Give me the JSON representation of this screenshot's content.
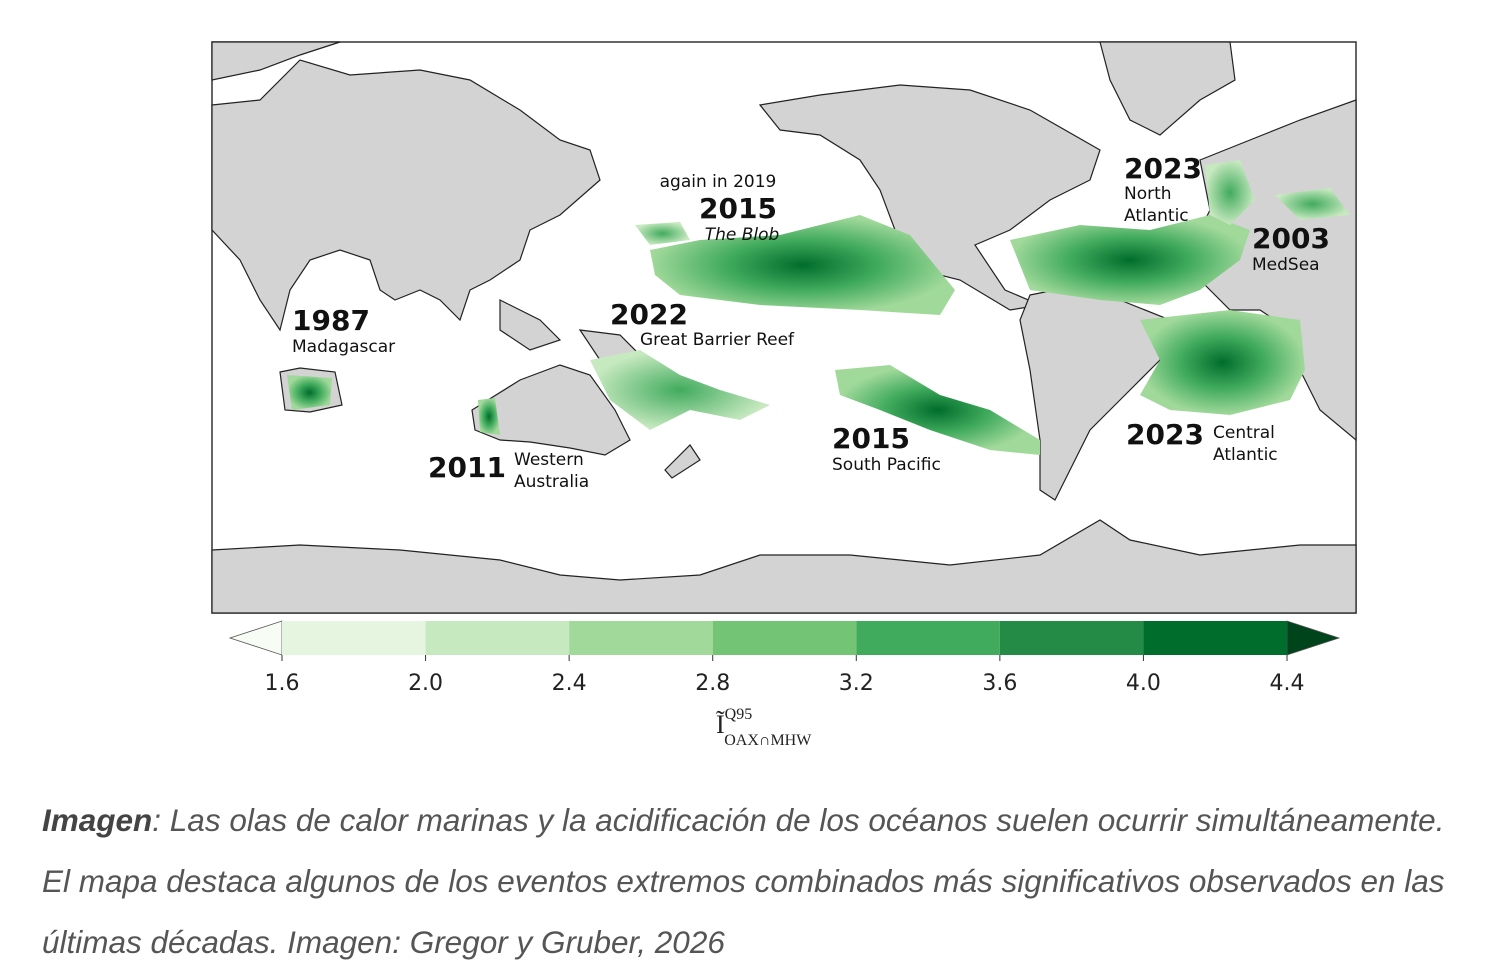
{
  "map": {
    "annotations": [
      {
        "note": "again in 2019",
        "year": "2015",
        "lines": [
          "The Blob"
        ]
      },
      {
        "year": "2023",
        "lines": [
          "North",
          "Atlantic"
        ]
      },
      {
        "year": "2003",
        "lines": [
          "MedSea"
        ]
      },
      {
        "year": "1987",
        "lines": [
          "Madagascar"
        ]
      },
      {
        "year": "2022",
        "lines": [
          "Great Barrier Reef"
        ]
      },
      {
        "year": "2011",
        "lines": [
          "Western",
          "Australia"
        ]
      },
      {
        "year": "2015",
        "lines": [
          "South Pacific"
        ]
      },
      {
        "year": "2023",
        "lines": [
          "Central",
          "Atlantic"
        ]
      }
    ],
    "colorbar": {
      "lim": [
        1.6,
        4.4
      ],
      "ticks": [
        1.6,
        {
          "value": 2,
          "label": "2.0"
        },
        2.4,
        2.8,
        3.2,
        3.6,
        {
          "value": 4,
          "label": "4.0"
        },
        4.4
      ],
      "colors": [
        "#e5f5e0",
        "#c7e9c0",
        "#a1d99b",
        "#74c476",
        "#41ab5d",
        "#238b45",
        "#006d2c"
      ],
      "under_color": "#f7fcf5",
      "over_color": "#00441b",
      "label": {
        "symbol": "Ĩ",
        "superscript": "Q95",
        "subscript": "OAX∩MHW"
      }
    }
  },
  "caption": {
    "label": "Imagen",
    "text": ": Las olas de calor marinas y la acidificación de los océanos suelen ocurrir simultáneamente. El mapa destaca algunos de los eventos extremos combinados más significativos observados en las últimas décadas. Imagen: Gregor y Gruber, 2026"
  }
}
